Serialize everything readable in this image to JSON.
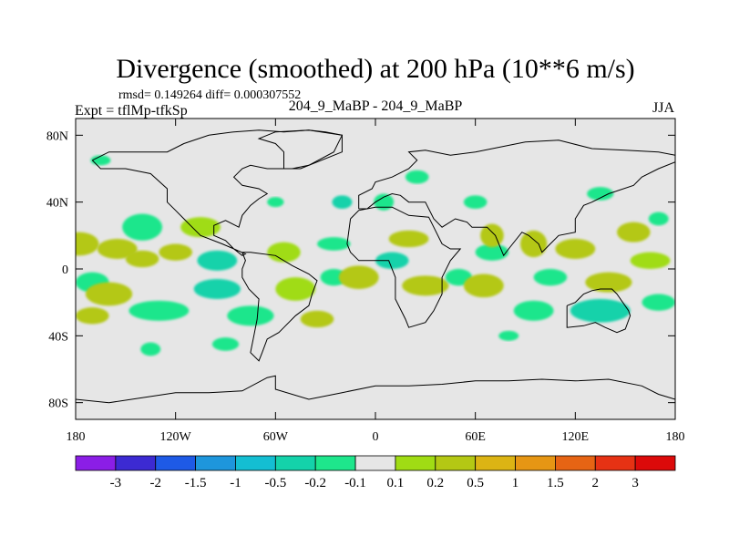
{
  "chart_data": {
    "type": "heatmap",
    "title": "Divergence (smoothed) at 200 hPa (10**6 m/s)",
    "stats": "rmsd= 0.149264 diff= 0.000307552",
    "experiment": "Expt = tflMp-tfkSp",
    "case_label": "204_9_MaBP - 204_9_MaBP",
    "season": "JJA",
    "xlim": [
      -180,
      180
    ],
    "ylim": [
      -90,
      90
    ],
    "x_ticks": [
      {
        "value": -180,
        "label": "180"
      },
      {
        "value": -120,
        "label": "120W"
      },
      {
        "value": -60,
        "label": "60W"
      },
      {
        "value": 0,
        "label": "0"
      },
      {
        "value": 60,
        "label": "60E"
      },
      {
        "value": 120,
        "label": "120E"
      },
      {
        "value": 180,
        "label": "180"
      }
    ],
    "y_ticks": [
      {
        "value": 80,
        "label": "80N"
      },
      {
        "value": 40,
        "label": "40N"
      },
      {
        "value": 0,
        "label": "0"
      },
      {
        "value": -40,
        "label": "40S"
      },
      {
        "value": -80,
        "label": "80S"
      }
    ],
    "colorbar": {
      "colors": [
        "#8b1ee6",
        "#3c2ad2",
        "#1e5ae6",
        "#1e96dc",
        "#14bed2",
        "#14d2aa",
        "#1ee68c",
        "#e6e6e6",
        "#a0dc14",
        "#b4c814",
        "#dcb414",
        "#e69614",
        "#e66414",
        "#e63214",
        "#dc0a0a"
      ],
      "labels": [
        "-3",
        "-2",
        "-1.5",
        "-1",
        "-0.5",
        "-0.2",
        "-0.1",
        "0.1",
        "0.2",
        "0.5",
        "1",
        "1.5",
        "2",
        "3"
      ]
    },
    "blobs": [
      {
        "lon": -178,
        "lat": 15,
        "rx": 12,
        "ry": 7,
        "level": 9
      },
      {
        "lon": -155,
        "lat": 12,
        "rx": 12,
        "ry": 6,
        "level": 9
      },
      {
        "lon": -170,
        "lat": -8,
        "rx": 10,
        "ry": 6,
        "level": 6
      },
      {
        "lon": -140,
        "lat": 6,
        "rx": 10,
        "ry": 5,
        "level": 9
      },
      {
        "lon": -140,
        "lat": 25,
        "rx": 12,
        "ry": 8,
        "level": 6
      },
      {
        "lon": -105,
        "lat": 25,
        "rx": 12,
        "ry": 6,
        "level": 8
      },
      {
        "lon": -120,
        "lat": 10,
        "rx": 10,
        "ry": 5,
        "level": 9
      },
      {
        "lon": -95,
        "lat": 5,
        "rx": 12,
        "ry": 6,
        "level": 5
      },
      {
        "lon": -160,
        "lat": -15,
        "rx": 14,
        "ry": 7,
        "level": 9
      },
      {
        "lon": -130,
        "lat": -25,
        "rx": 18,
        "ry": 6,
        "level": 6
      },
      {
        "lon": -95,
        "lat": -12,
        "rx": 14,
        "ry": 6,
        "level": 5
      },
      {
        "lon": -75,
        "lat": -28,
        "rx": 14,
        "ry": 6,
        "level": 6
      },
      {
        "lon": -170,
        "lat": -28,
        "rx": 10,
        "ry": 5,
        "level": 9
      },
      {
        "lon": -90,
        "lat": -45,
        "rx": 8,
        "ry": 4,
        "level": 6
      },
      {
        "lon": -135,
        "lat": -48,
        "rx": 6,
        "ry": 4,
        "level": 6
      },
      {
        "lon": -60,
        "lat": 40,
        "rx": 5,
        "ry": 3,
        "level": 6
      },
      {
        "lon": -55,
        "lat": 10,
        "rx": 10,
        "ry": 6,
        "level": 8
      },
      {
        "lon": -48,
        "lat": -12,
        "rx": 12,
        "ry": 7,
        "level": 8
      },
      {
        "lon": -25,
        "lat": -5,
        "rx": 8,
        "ry": 5,
        "level": 6
      },
      {
        "lon": -10,
        "lat": -5,
        "rx": 12,
        "ry": 7,
        "level": 9
      },
      {
        "lon": -35,
        "lat": -30,
        "rx": 10,
        "ry": 5,
        "level": 9
      },
      {
        "lon": -20,
        "lat": 40,
        "rx": 6,
        "ry": 4,
        "level": 5
      },
      {
        "lon": 5,
        "lat": 40,
        "rx": 6,
        "ry": 5,
        "level": 6
      },
      {
        "lon": -25,
        "lat": 15,
        "rx": 10,
        "ry": 4,
        "level": 6
      },
      {
        "lon": 25,
        "lat": 55,
        "rx": 7,
        "ry": 4,
        "level": 6
      },
      {
        "lon": 20,
        "lat": 18,
        "rx": 12,
        "ry": 5,
        "level": 9
      },
      {
        "lon": 10,
        "lat": 5,
        "rx": 10,
        "ry": 5,
        "level": 5
      },
      {
        "lon": 30,
        "lat": -10,
        "rx": 14,
        "ry": 6,
        "level": 9
      },
      {
        "lon": 50,
        "lat": -5,
        "rx": 8,
        "ry": 5,
        "level": 6
      },
      {
        "lon": 65,
        "lat": -10,
        "rx": 12,
        "ry": 7,
        "level": 9
      },
      {
        "lon": 70,
        "lat": 10,
        "rx": 10,
        "ry": 5,
        "level": 6
      },
      {
        "lon": 70,
        "lat": 20,
        "rx": 7,
        "ry": 7,
        "level": 9
      },
      {
        "lon": 95,
        "lat": 15,
        "rx": 8,
        "ry": 8,
        "level": 9
      },
      {
        "lon": 120,
        "lat": 12,
        "rx": 12,
        "ry": 6,
        "level": 9
      },
      {
        "lon": 95,
        "lat": -25,
        "rx": 12,
        "ry": 6,
        "level": 6
      },
      {
        "lon": 135,
        "lat": -25,
        "rx": 18,
        "ry": 7,
        "level": 5
      },
      {
        "lon": 105,
        "lat": -5,
        "rx": 10,
        "ry": 5,
        "level": 6
      },
      {
        "lon": 140,
        "lat": -8,
        "rx": 14,
        "ry": 6,
        "level": 9
      },
      {
        "lon": 165,
        "lat": 5,
        "rx": 12,
        "ry": 5,
        "level": 8
      },
      {
        "lon": 155,
        "lat": 22,
        "rx": 10,
        "ry": 6,
        "level": 9
      },
      {
        "lon": 170,
        "lat": -20,
        "rx": 10,
        "ry": 5,
        "level": 6
      },
      {
        "lon": 60,
        "lat": 40,
        "rx": 7,
        "ry": 4,
        "level": 6
      },
      {
        "lon": 135,
        "lat": 45,
        "rx": 8,
        "ry": 4,
        "level": 6
      },
      {
        "lon": 170,
        "lat": 30,
        "rx": 6,
        "ry": 4,
        "level": 6
      },
      {
        "lon": -165,
        "lat": 65,
        "rx": 6,
        "ry": 3,
        "level": 6
      },
      {
        "lon": 80,
        "lat": -40,
        "rx": 6,
        "ry": 3,
        "level": 6
      }
    ],
    "coastlines": [
      [
        [
          -170,
          65
        ],
        [
          -160,
          70
        ],
        [
          -140,
          70
        ],
        [
          -125,
          70
        ],
        [
          -115,
          75
        ],
        [
          -100,
          80
        ],
        [
          -85,
          82
        ],
        [
          -70,
          83
        ],
        [
          -55,
          82
        ],
        [
          -40,
          83
        ],
        [
          -30,
          82
        ],
        [
          -20,
          80
        ],
        [
          -25,
          70
        ],
        [
          -40,
          62
        ],
        [
          -50,
          60
        ],
        [
          -65,
          60
        ],
        [
          -75,
          62
        ],
        [
          -80,
          60
        ],
        [
          -85,
          55
        ],
        [
          -80,
          50
        ],
        [
          -70,
          48
        ],
        [
          -65,
          45
        ],
        [
          -70,
          42
        ],
        [
          -75,
          38
        ],
        [
          -80,
          32
        ],
        [
          -82,
          25
        ],
        [
          -90,
          29
        ],
        [
          -97,
          26
        ],
        [
          -97,
          20
        ],
        [
          -90,
          17
        ],
        [
          -85,
          12
        ],
        [
          -80,
          8
        ],
        [
          -78,
          9
        ],
        [
          -85,
          12
        ],
        [
          -92,
          15
        ],
        [
          -105,
          20
        ],
        [
          -110,
          25
        ],
        [
          -115,
          30
        ],
        [
          -120,
          35
        ],
        [
          -125,
          40
        ],
        [
          -125,
          48
        ],
        [
          -135,
          57
        ],
        [
          -150,
          60
        ],
        [
          -165,
          60
        ],
        [
          -170,
          65
        ]
      ],
      [
        [
          -80,
          10
        ],
        [
          -75,
          10
        ],
        [
          -60,
          8
        ],
        [
          -50,
          2
        ],
        [
          -40,
          -3
        ],
        [
          -35,
          -7
        ],
        [
          -38,
          -15
        ],
        [
          -40,
          -22
        ],
        [
          -48,
          -28
        ],
        [
          -55,
          -35
        ],
        [
          -58,
          -38
        ],
        [
          -65,
          -42
        ],
        [
          -68,
          -50
        ],
        [
          -70,
          -55
        ],
        [
          -75,
          -50
        ],
        [
          -73,
          -40
        ],
        [
          -71,
          -30
        ],
        [
          -70,
          -18
        ],
        [
          -76,
          -12
        ],
        [
          -80,
          -5
        ],
        [
          -80,
          0
        ],
        [
          -78,
          5
        ],
        [
          -80,
          10
        ]
      ],
      [
        [
          -15,
          30
        ],
        [
          -10,
          35
        ],
        [
          0,
          37
        ],
        [
          10,
          37
        ],
        [
          20,
          32
        ],
        [
          32,
          31
        ],
        [
          35,
          25
        ],
        [
          40,
          15
        ],
        [
          45,
          12
        ],
        [
          51,
          12
        ],
        [
          45,
          5
        ],
        [
          40,
          -5
        ],
        [
          40,
          -15
        ],
        [
          35,
          -25
        ],
        [
          30,
          -32
        ],
        [
          20,
          -35
        ],
        [
          18,
          -30
        ],
        [
          12,
          -18
        ],
        [
          12,
          -5
        ],
        [
          8,
          5
        ],
        [
          0,
          5
        ],
        [
          -10,
          5
        ],
        [
          -15,
          10
        ],
        [
          -17,
          15
        ],
        [
          -15,
          30
        ]
      ],
      [
        [
          -10,
          36
        ],
        [
          -10,
          44
        ],
        [
          -2,
          48
        ],
        [
          0,
          52
        ],
        [
          10,
          55
        ],
        [
          20,
          60
        ],
        [
          25,
          65
        ],
        [
          20,
          70
        ],
        [
          30,
          71
        ],
        [
          45,
          68
        ],
        [
          60,
          70
        ],
        [
          75,
          73
        ],
        [
          90,
          76
        ],
        [
          110,
          77
        ],
        [
          130,
          72
        ],
        [
          150,
          71
        ],
        [
          170,
          70
        ],
        [
          180,
          68
        ],
        [
          180,
          64
        ],
        [
          170,
          60
        ],
        [
          160,
          55
        ],
        [
          155,
          50
        ],
        [
          140,
          45
        ],
        [
          130,
          40
        ],
        [
          125,
          38
        ],
        [
          120,
          30
        ],
        [
          120,
          22
        ],
        [
          110,
          20
        ],
        [
          105,
          15
        ],
        [
          100,
          10
        ],
        [
          98,
          15
        ],
        [
          92,
          20
        ],
        [
          88,
          22
        ],
        [
          80,
          12
        ],
        [
          77,
          8
        ],
        [
          72,
          20
        ],
        [
          67,
          25
        ],
        [
          58,
          25
        ],
        [
          55,
          28
        ],
        [
          48,
          30
        ],
        [
          40,
          25
        ],
        [
          35,
          30
        ],
        [
          30,
          40
        ],
        [
          26,
          40
        ],
        [
          20,
          40
        ],
        [
          15,
          44
        ],
        [
          10,
          45
        ],
        [
          5,
          43
        ],
        [
          0,
          40
        ],
        [
          -5,
          36
        ],
        [
          -10,
          36
        ]
      ],
      [
        [
          115,
          -22
        ],
        [
          115,
          -35
        ],
        [
          125,
          -34
        ],
        [
          132,
          -32
        ],
        [
          138,
          -35
        ],
        [
          145,
          -38
        ],
        [
          150,
          -36
        ],
        [
          153,
          -28
        ],
        [
          152,
          -25
        ],
        [
          145,
          -15
        ],
        [
          142,
          -12
        ],
        [
          135,
          -12
        ],
        [
          130,
          -13
        ],
        [
          125,
          -15
        ],
        [
          120,
          -20
        ],
        [
          115,
          -22
        ]
      ],
      [
        [
          -180,
          -78
        ],
        [
          -160,
          -80
        ],
        [
          -140,
          -77
        ],
        [
          -120,
          -74
        ],
        [
          -100,
          -74
        ],
        [
          -80,
          -73
        ],
        [
          -65,
          -65
        ],
        [
          -60,
          -64
        ],
        [
          -60,
          -72
        ],
        [
          -40,
          -78
        ],
        [
          -20,
          -74
        ],
        [
          0,
          -70
        ],
        [
          20,
          -70
        ],
        [
          40,
          -69
        ],
        [
          60,
          -67
        ],
        [
          80,
          -67
        ],
        [
          100,
          -66
        ],
        [
          120,
          -67
        ],
        [
          140,
          -66
        ],
        [
          160,
          -70
        ],
        [
          170,
          -75
        ],
        [
          180,
          -78
        ]
      ],
      [
        [
          -55,
          60
        ],
        [
          -45,
          60
        ],
        [
          -20,
          70
        ],
        [
          -20,
          80
        ],
        [
          -40,
          83
        ],
        [
          -60,
          82
        ],
        [
          -70,
          78
        ],
        [
          -60,
          75
        ],
        [
          -55,
          70
        ],
        [
          -55,
          60
        ]
      ]
    ]
  }
}
